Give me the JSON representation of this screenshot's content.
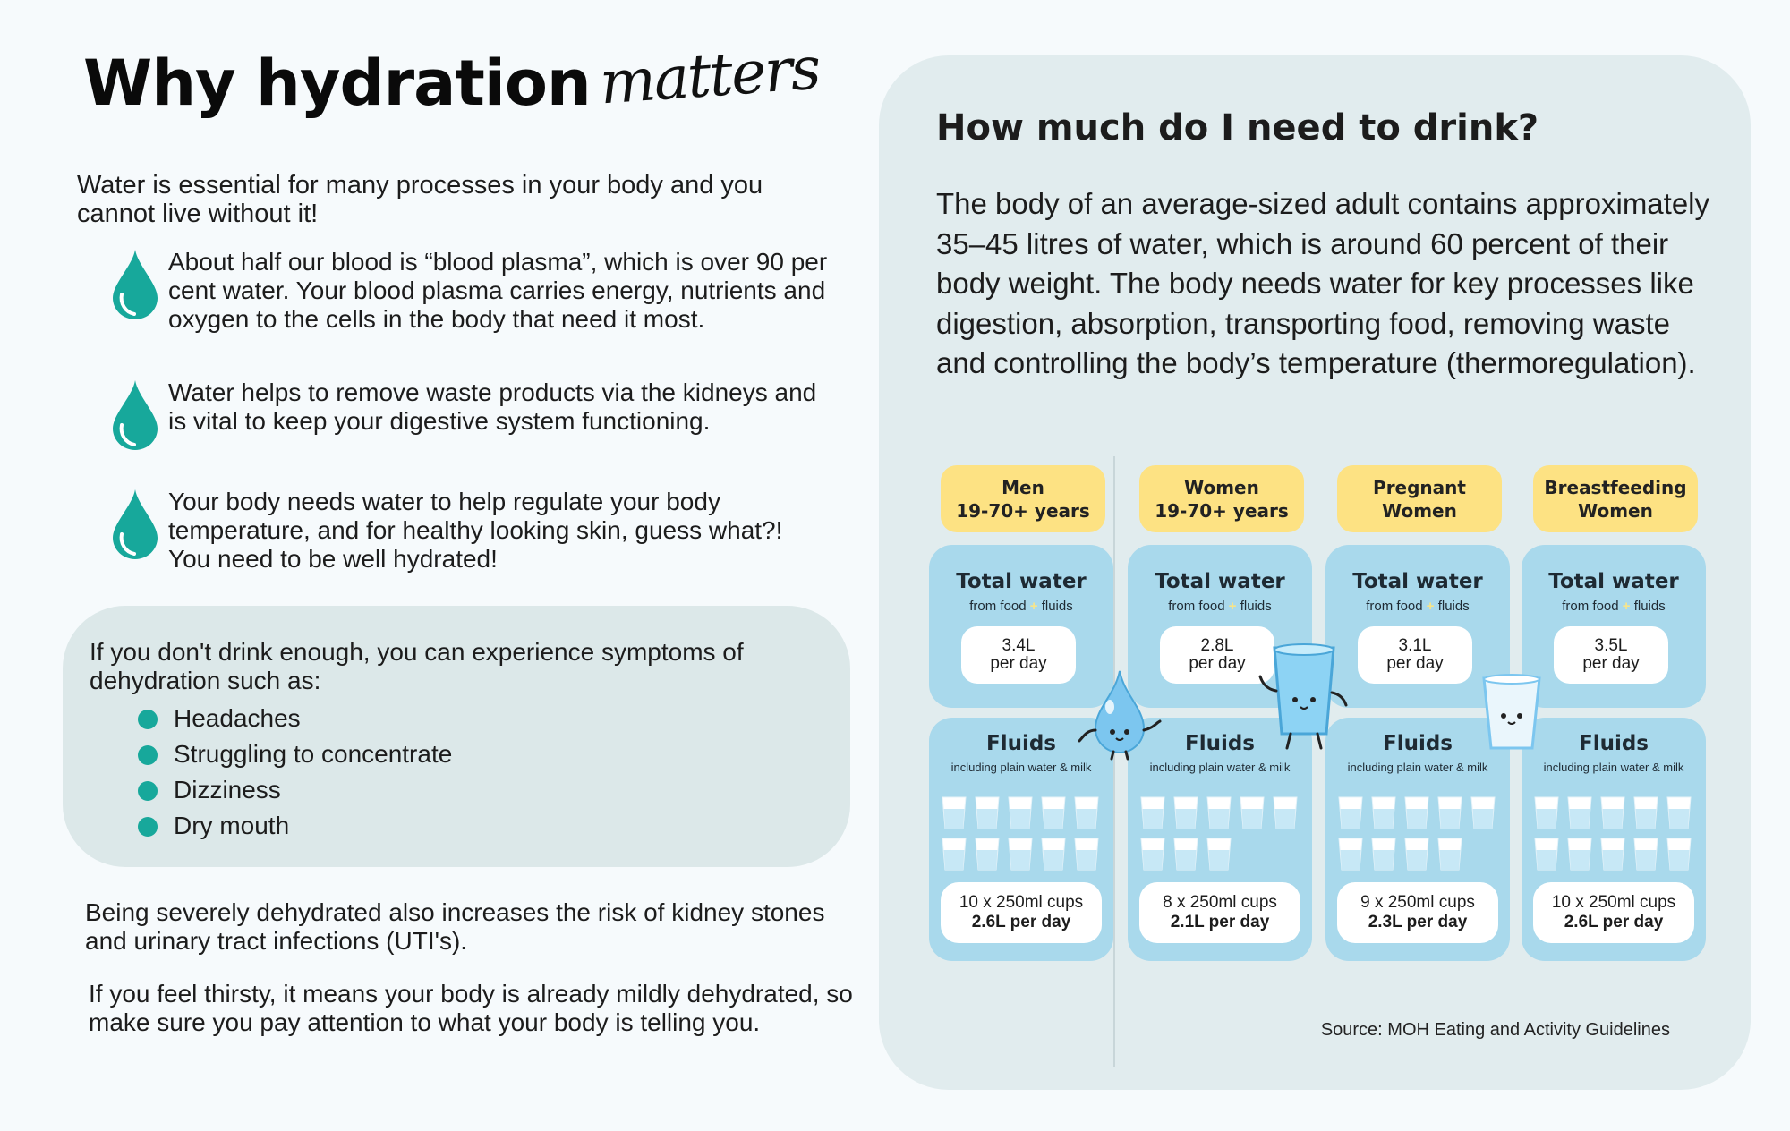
{
  "title": {
    "main": "Why hydration",
    "script": "matters"
  },
  "intro": "Water is essential for many processes in your body and you cannot live without it!",
  "bullets": [
    {
      "icon": "water-drop-icon",
      "text": "About half our blood is “blood plasma”, which is over 90 per cent water. Your blood plasma carries energy, nutrients and oxygen to the cells in the body that need it most."
    },
    {
      "icon": "water-drop-icon",
      "text": "Water helps to remove waste products via the kidneys and is vital to keep your digestive system functioning."
    },
    {
      "icon": "water-drop-icon",
      "text": "Your body needs water to help regulate your body temperature, and for healthy looking skin, guess what?! You need to be well hydrated!"
    }
  ],
  "dehydration": {
    "intro": "If you don't drink enough, you can experience symptoms of dehydration such as:",
    "symptoms": [
      "Headaches",
      "Struggling to concentrate",
      "Dizziness",
      "Dry mouth"
    ]
  },
  "paragraphs": [
    "Being severely dehydrated also increases the risk of kidney stones and urinary tract infections (UTI's).",
    "If you feel thirsty, it means your body is already mildly dehydrated, so make sure you pay attention to what your body is telling you."
  ],
  "panel": {
    "heading": "How much do I need to drink?",
    "body": "The body of an average-sized adult contains approximately 35–45 litres of water, which is around 60 percent of their body weight. The body needs water for key processes like digestion, absorption, transporting food, removing waste and controlling the body’s temperature (thermoregulation).",
    "source": "Source: MOH Eating and Activity Guidelines"
  },
  "columns": [
    {
      "label": "Men\n19-70+ years",
      "total_title": "Total water",
      "total_sub_pre": "from food",
      "total_sub_plus": "+",
      "total_sub_post": "fluids",
      "total_value": "3.4L",
      "total_unit": "per day",
      "fluids_title": "Fluids",
      "fluids_sub": "including plain water & milk",
      "cups": 10,
      "cups_text": "10 x 250ml cups",
      "fluids_value": "2.6L per day"
    },
    {
      "label": "Women\n19-70+ years",
      "total_title": "Total water",
      "total_sub_pre": "from food",
      "total_sub_plus": "+",
      "total_sub_post": "fluids",
      "total_value": "2.8L",
      "total_unit": "per day",
      "fluids_title": "Fluids",
      "fluids_sub": "including plain water & milk",
      "cups": 8,
      "cups_text": "8 x 250ml cups",
      "fluids_value": "2.1L per day"
    },
    {
      "label": "Pregnant\nWomen",
      "total_title": "Total water",
      "total_sub_pre": "from food",
      "total_sub_plus": "+",
      "total_sub_post": "fluids",
      "total_value": "3.1L",
      "total_unit": "per day",
      "fluids_title": "Fluids",
      "fluids_sub": "including plain water & milk",
      "cups": 9,
      "cups_text": "9 x 250ml cups",
      "fluids_value": "2.3L per day"
    },
    {
      "label": "Breastfeeding\nWomen",
      "total_title": "Total water",
      "total_sub_pre": "from food",
      "total_sub_plus": "+",
      "total_sub_post": "fluids",
      "total_value": "3.5L",
      "total_unit": "per day",
      "fluids_title": "Fluids",
      "fluids_sub": "including plain water & milk",
      "cups": 10,
      "cups_text": "10 x 250ml cups",
      "fluids_value": "2.6L per day"
    }
  ],
  "colors": {
    "accent": "#17a89b",
    "card": "#a9d9ec",
    "label": "#fde283",
    "panel": "#e1ecee",
    "symptom_box": "#dce8e9"
  }
}
